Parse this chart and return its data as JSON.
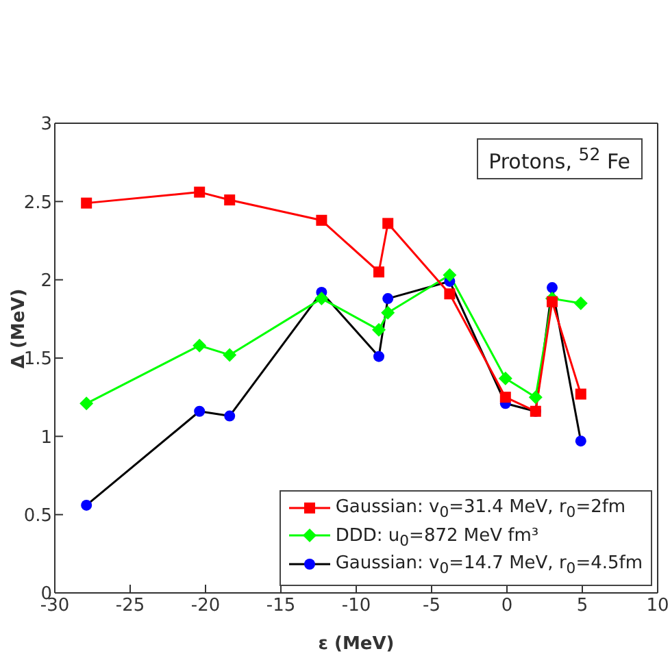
{
  "chart_data": {
    "type": "line",
    "xlabel": "ε (MeV)",
    "ylabel": "Δ (MeV)",
    "x": [
      -27.9,
      -20.4,
      -18.4,
      -12.3,
      -8.5,
      -7.9,
      -3.8,
      -0.1,
      1.9,
      3.0,
      4.9
    ],
    "series": [
      {
        "name": "Gaussian: v$_{0}$=31.4 MeV, r$_{0}$=2fm",
        "color": "#ff0000",
        "marker": "square",
        "values": [
          2.49,
          2.56,
          2.51,
          2.38,
          2.05,
          2.36,
          1.91,
          1.25,
          1.16,
          1.86,
          1.27
        ]
      },
      {
        "name": "DDD: u$_{0}$=872 MeV fm³",
        "color": "#00ff00",
        "marker": "diamond",
        "values": [
          1.21,
          1.58,
          1.52,
          1.88,
          1.68,
          1.79,
          2.03,
          1.37,
          1.25,
          1.88,
          1.85
        ]
      },
      {
        "name": "Gaussian: v$_{0}$=14.7 MeV, r$_{0}$=4.5fm",
        "color": "#000000",
        "colors": [
          "#0000ff",
          "#0000ff",
          "#0000ff",
          "#0000ff",
          "#0000ff",
          "#0000ff",
          "#0000ff",
          "#0000ff",
          "#0000ff",
          "#0000ff",
          "#0000ff"
        ],
        "marker": "circle",
        "values": [
          0.56,
          1.16,
          1.13,
          1.92,
          1.51,
          1.88,
          1.99,
          1.21,
          1.16,
          1.95,
          0.97
        ]
      }
    ],
    "xlim": [
      -30,
      10
    ],
    "xticks": [
      -30,
      -25,
      -20,
      -15,
      -10,
      -5,
      0,
      5,
      10
    ],
    "ylim": [
      0,
      3
    ],
    "yticks": [
      0,
      0.5,
      1,
      1.5,
      2,
      2.5,
      3
    ],
    "annotations": [
      "Protons, $^{52}$ Fe"
    ],
    "legend": "bottom right",
    "grid": false
  }
}
